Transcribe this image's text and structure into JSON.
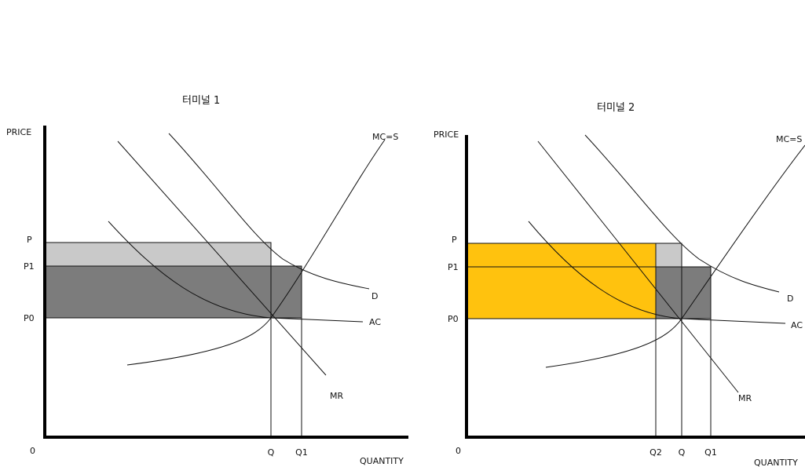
{
  "panels": [
    {
      "title": "터미널 1",
      "y_label": "PRICE",
      "x_label": "QUANTITY",
      "origin": "0",
      "prices": [
        "P",
        "P1",
        "P0"
      ],
      "quantities": [
        "Q",
        "Q1"
      ],
      "curves": {
        "mc": "MC=S",
        "d": "D",
        "ac": "AC",
        "mr": "MR"
      }
    },
    {
      "title": "터미널 2",
      "y_label": "PRICE",
      "x_label": "QUANTITY",
      "origin": "0",
      "prices": [
        "P",
        "P1",
        "P0"
      ],
      "quantities": [
        "Q2",
        "Q",
        "Q1"
      ],
      "curves": {
        "mc": "MC=S",
        "d": "D",
        "ac": "AC",
        "mr": "MR"
      }
    }
  ]
}
